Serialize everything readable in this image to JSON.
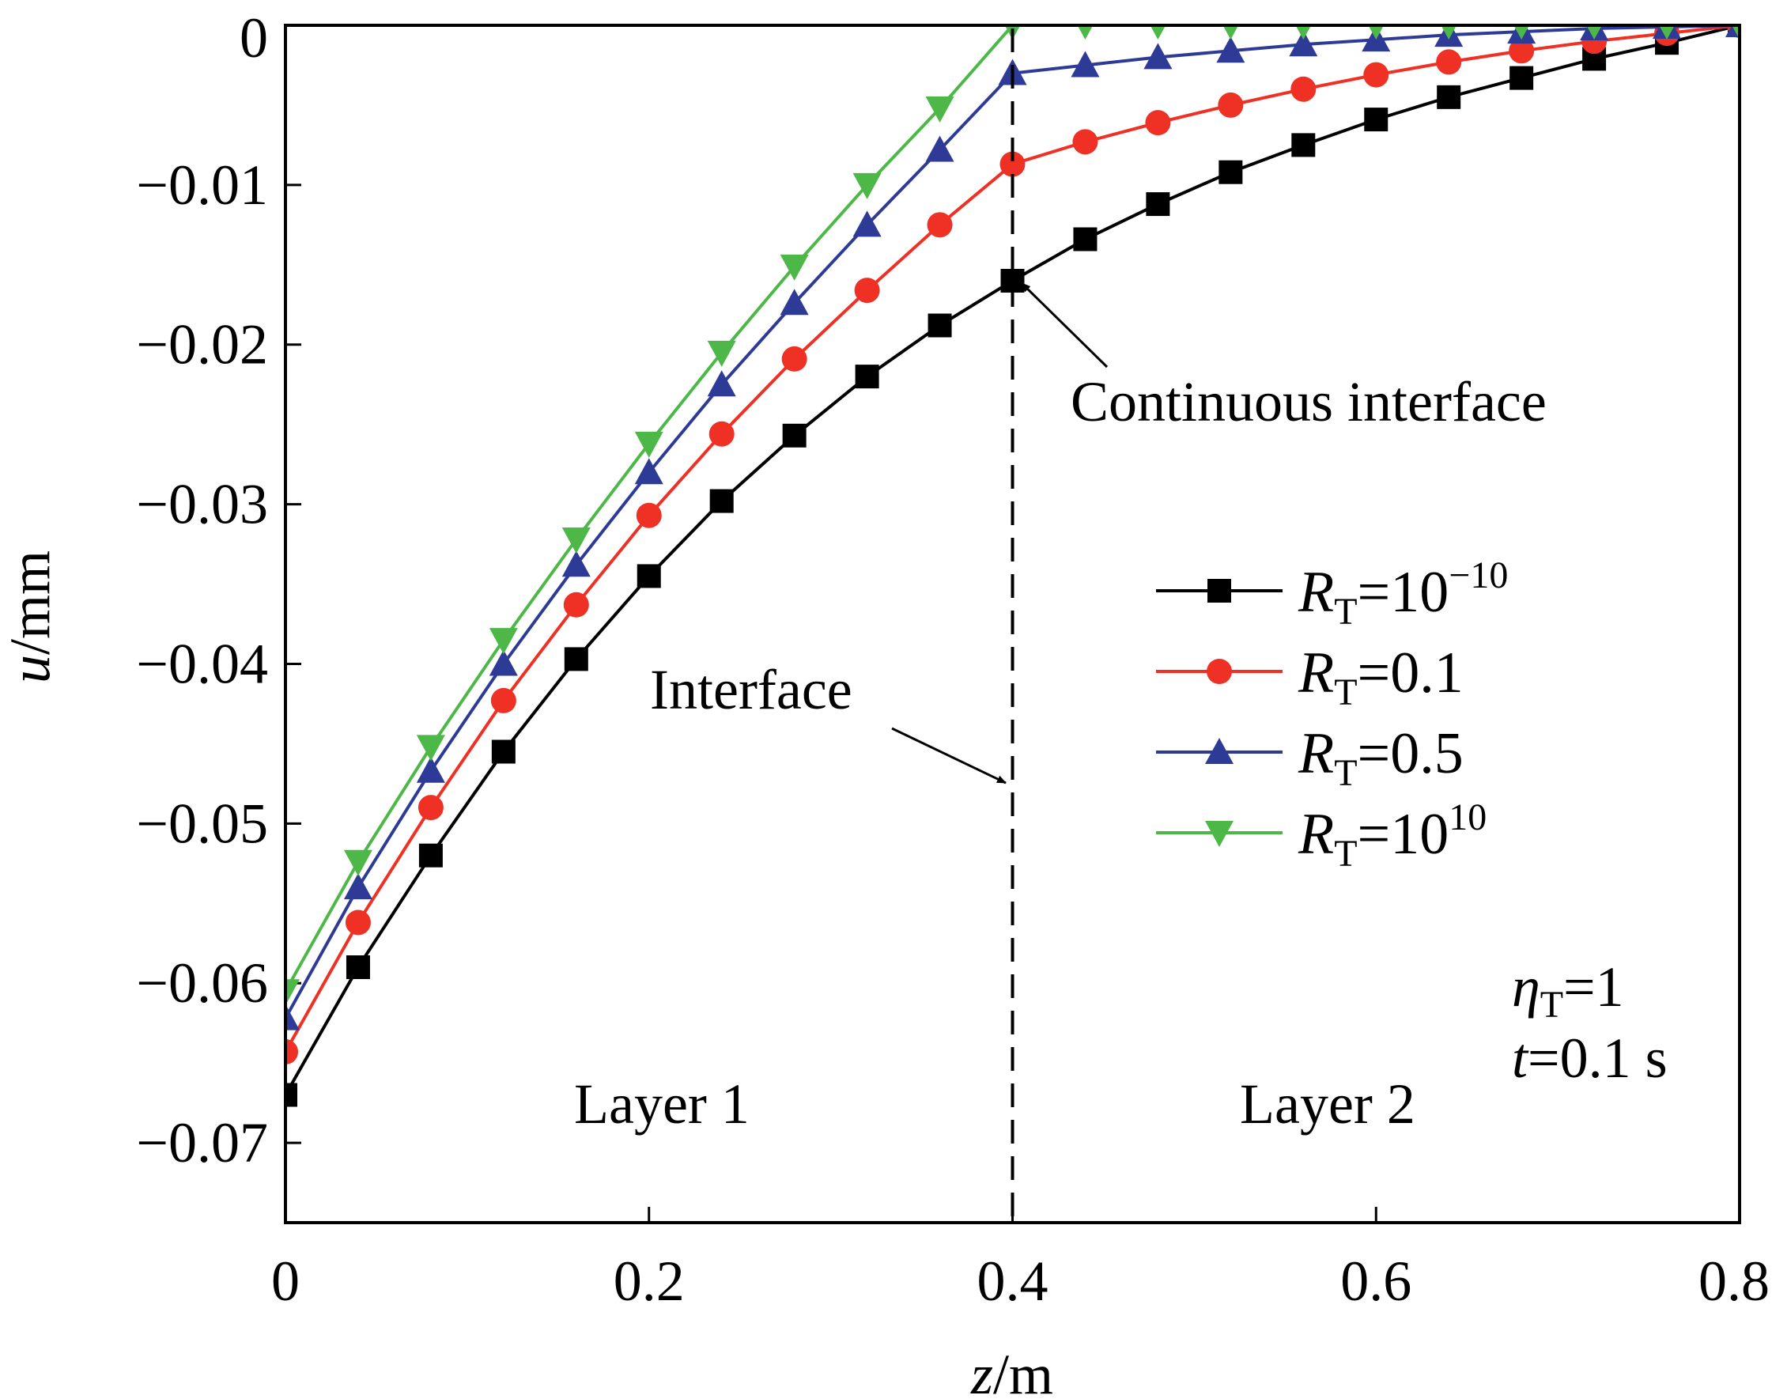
{
  "chart_data": {
    "type": "line",
    "title": "",
    "xlabel": {
      "var": "z",
      "unit": "/m"
    },
    "ylabel": {
      "var": "u",
      "unit": "/mm"
    },
    "xlim": [
      0,
      0.8
    ],
    "ylim": [
      -0.075,
      0
    ],
    "xticks": [
      {
        "value": 0,
        "label": "0"
      },
      {
        "value": 0.2,
        "label": "0.2"
      },
      {
        "value": 0.4,
        "label": "0.4"
      },
      {
        "value": 0.6,
        "label": "0.6"
      },
      {
        "value": 0.8,
        "label": "0.8"
      }
    ],
    "yticks": [
      {
        "value": 0,
        "label": "0"
      },
      {
        "value": -0.01,
        "label": "−0.01"
      },
      {
        "value": -0.02,
        "label": "−0.02"
      },
      {
        "value": -0.03,
        "label": "−0.03"
      },
      {
        "value": -0.04,
        "label": "−0.04"
      },
      {
        "value": -0.05,
        "label": "−0.05"
      },
      {
        "value": -0.06,
        "label": "−0.06"
      },
      {
        "value": -0.07,
        "label": "−0.07"
      }
    ],
    "grid": false,
    "legend_position": "right",
    "x": [
      0,
      0.04,
      0.08,
      0.12,
      0.16,
      0.2,
      0.24,
      0.28,
      0.32,
      0.36,
      0.4,
      0.44,
      0.48,
      0.52,
      0.56,
      0.6,
      0.64,
      0.68,
      0.72,
      0.76,
      0.8
    ],
    "series": [
      {
        "name": "R_T=10^-10",
        "legend": {
          "sym": "R",
          "sub": "T",
          "eq": "=10",
          "sup": "−10"
        },
        "color": "#000000",
        "marker": "square",
        "values": [
          -0.067,
          -0.059,
          -0.052,
          -0.0455,
          -0.0397,
          -0.0345,
          -0.0298,
          -0.0257,
          -0.022,
          -0.0188,
          -0.016,
          -0.0134,
          -0.0112,
          -0.0092,
          -0.0075,
          -0.0059,
          -0.0045,
          -0.0033,
          -0.0021,
          -0.0011,
          0.0
        ]
      },
      {
        "name": "R_T=0.1",
        "legend": {
          "sym": "R",
          "sub": "T",
          "eq": "=0.1",
          "sup": ""
        },
        "color": "#ee3124",
        "marker": "circle",
        "values": [
          -0.0643,
          -0.0562,
          -0.049,
          -0.0423,
          -0.0363,
          -0.0307,
          -0.0256,
          -0.0209,
          -0.0166,
          -0.0125,
          -0.0087,
          -0.0073,
          -0.0061,
          -0.005,
          -0.004,
          -0.0031,
          -0.0023,
          -0.0016,
          -0.001,
          -0.0005,
          0.0
        ]
      },
      {
        "name": "R_T=0.5",
        "legend": {
          "sym": "R",
          "sub": "T",
          "eq": "=0.5",
          "sup": ""
        },
        "color": "#2e3b96",
        "marker": "triangle-up",
        "values": [
          -0.0622,
          -0.054,
          -0.0467,
          -0.04,
          -0.0338,
          -0.028,
          -0.0225,
          -0.0174,
          -0.0125,
          -0.0078,
          -0.003,
          -0.0025,
          -0.002,
          -0.0016,
          -0.0012,
          -0.0009,
          -0.0006,
          -0.0004,
          -0.0002,
          -0.0001,
          0.0
        ]
      },
      {
        "name": "R_T=10^10",
        "legend": {
          "sym": "R",
          "sub": "T",
          "eq": "=10",
          "sup": "10"
        },
        "color": "#4db848",
        "marker": "triangle-down",
        "values": [
          -0.0605,
          -0.0524,
          -0.0452,
          -0.0385,
          -0.0322,
          -0.0262,
          -0.0205,
          -0.0151,
          -0.01,
          -0.0052,
          0.0,
          0.0,
          0.0,
          0.0,
          0.0,
          0.0,
          0.0,
          0.0,
          0.0,
          0.0,
          0.0
        ]
      }
    ],
    "interface_line": {
      "x": 0.4,
      "style": "dashed"
    },
    "annotations": {
      "continuous_interface": "Continuous interface",
      "interface": "Interface",
      "layer1": "Layer 1",
      "layer2": "Layer 2",
      "eta": {
        "sym": "η",
        "sub": "T",
        "rest": "=1"
      },
      "time": {
        "sym": "t",
        "rest": "=0.1 s"
      }
    }
  }
}
